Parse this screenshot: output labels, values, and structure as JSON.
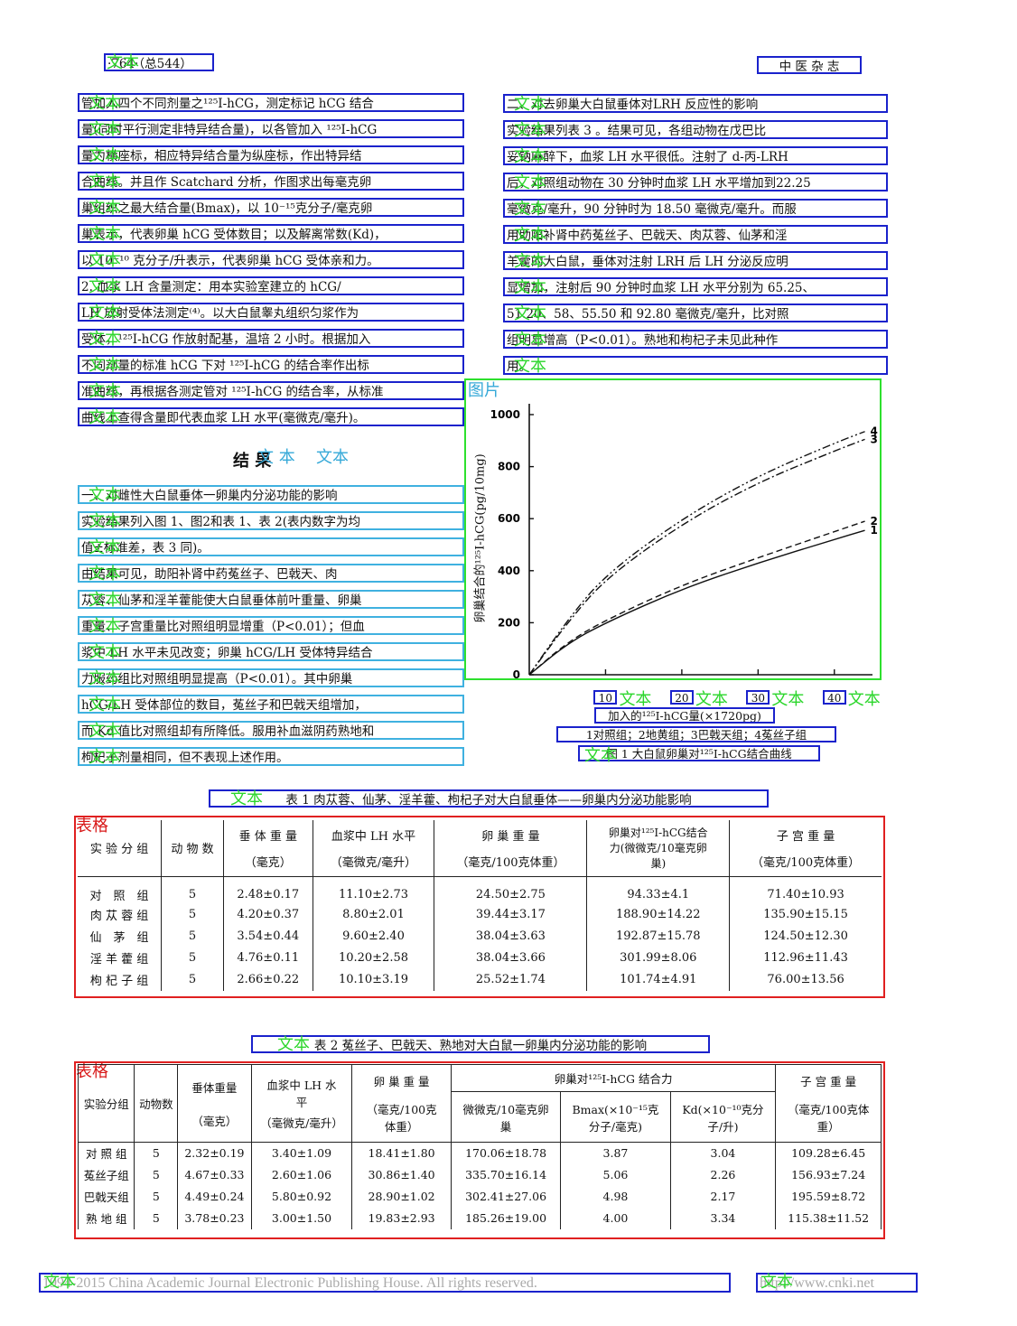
{
  "header": {
    "page_number": "·764·（总544）",
    "journal": "中 医 杂 志"
  },
  "tags": {
    "text": "文本",
    "text_spaced": "文 本",
    "figure": "图片",
    "table": "表格"
  },
  "left_lines": [
    "管加入四个不同剂量之¹²⁵I-hCG，测定标记 hCG 结合",
    "量(同时平行测定非特异结合量)，以各管加入 ¹²⁵I-hCG",
    "量为横座标，相应特异结合量为纵座标，作出特异结",
    "合曲线。并且作 Scatchard 分析，作图求出每毫克卵",
    "巢组织之最大结合量(Bmax)，以 10⁻¹⁵克分子/毫克卵",
    "巢表示，代表卵巢 hCG 受体数目；以及解离常数(Kd)，",
    "以 10⁻¹⁰ 克分子/升表示，代表卵巢 hCG 受体亲和力。",
    "2. 血浆 LH 含量测定：用本实验室建立的 hCG/",
    "LH 放射受体法测定⁽⁴⁾。以大白鼠睾丸组织匀浆作为",
    "受体，¹²⁵I-hCG 作放射配基，温培 2 小时。根据加入",
    "不同剂量的标准 hCG 下对 ¹²⁵I-hCG 的结合率作出标",
    "准曲线，再根据各测定管对 ¹²⁵I-hCG 的结合率，从标准",
    "曲线上查得含量即代表血浆 LH 水平(毫微克/毫升)。"
  ],
  "results_heading": "结 果",
  "results_lines": [
    "一、对雌性大白鼠垂体一卵巢内分泌功能的影响",
    "实验结果列入图 1、图2和表 1、表 2(表内数字为均",
    "值±标准差，表 3 同)。",
    "由结果可见，助阳补肾中药菟丝子、巴戟天、肉",
    "苁蓉、仙茅和淫羊藿能使大白鼠垂体前叶重量、卵巢",
    "重量、子宫重量比对照组明显增重（P<0.01）；但血",
    "浆中 LH 水平未见改变；卵巢 hCG/LH 受体特异结合",
    "力服药组比对照组明显提高（P<0.01）。其中卵巢",
    "hCG/LH 受体部位的数目，菟丝子和巴戟天组增加，",
    "而 Kd 值比对照组却有所降低。服用补血滋阴药熟地和",
    "枸杞子剂量相同，但不表现上述作用。"
  ],
  "right_lines": [
    "二、对去卵巢大白鼠垂体对LRH 反应性的影响",
    "实验结果列表 3 。结果可见，各组动物在戊巴比",
    "妥钠麻醉下，血浆 LH 水平很低。注射了 d-丙-LRH",
    "后，对照组动物在 30 分钟时血浆 LH 水平增加到22.25",
    "毫微克/毫升，90 分钟时为 18.50 毫微克/毫升。而服",
    "用助阳补肾中药菟丝子、巴戟天、肉苁蓉、仙茅和淫",
    "羊藿的大白鼠，垂体对注射 LRH 后 LH 分泌反应明",
    "显增加，注射后 90 分钟时血浆 LH 水平分别为 65.25、",
    "51.20、58、55.50 和 92.80 毫微克/毫升，比对照",
    "组明显增高（P<0.01）。熟地和枸杞子未见此种作",
    "用。"
  ],
  "figure": {
    "y_tick_labels": [
      "1000",
      "800",
      "600",
      "400",
      "200",
      "0"
    ],
    "y_axis_label": "卵巢结合的¹²⁵I-hCG(pg/10mg)",
    "x_tick_labels": [
      "10",
      "20",
      "30",
      "40"
    ],
    "x_axis_label": "加入的¹²⁵I-hCG量(×1720pg)",
    "legend_line": "1对照组；2地黄组；3巴戟天组；4菟丝子组",
    "caption": "图 1 大白鼠卵巢对¹²⁵I-hCG结合曲线",
    "curve_labels": [
      "4",
      "3",
      "2",
      "1"
    ]
  },
  "chart_data": {
    "type": "line",
    "title": "",
    "xlabel": "加入的¹²⁵I-hCG量(×1720pg)",
    "ylabel": "卵巢结合的¹²⁵I-hCG(pg/10mg)",
    "ylim": [
      0,
      1000
    ],
    "xlim": [
      0,
      45
    ],
    "grid": false,
    "x": [
      0,
      5,
      10,
      20,
      30,
      40,
      44
    ],
    "series": [
      {
        "name": "1",
        "values": [
          0,
          120,
          200,
          330,
          430,
          520,
          555
        ]
      },
      {
        "name": "2",
        "values": [
          0,
          125,
          210,
          345,
          450,
          550,
          590
        ]
      },
      {
        "name": "3",
        "values": [
          0,
          200,
          370,
          580,
          740,
          860,
          905
        ]
      },
      {
        "name": "4",
        "values": [
          0,
          210,
          385,
          600,
          765,
          890,
          935
        ]
      }
    ]
  },
  "table1": {
    "title": "表 1 肉苁蓉、仙茅、淫羊藿、枸杞子对大白鼠垂体——卵巢内分泌功能影响",
    "headers": [
      [
        "实 验 分 组",
        ""
      ],
      [
        "动 物 数",
        ""
      ],
      [
        "垂 体 重 量",
        "（毫克）"
      ],
      [
        "血浆中 LH 水平",
        "（毫微克/毫升）"
      ],
      [
        "卵 巢 重 量",
        "（毫克/100克体重）"
      ],
      [
        "卵巢对¹²⁵I-hCG结合力(微微克/10毫克卵巢)",
        ""
      ],
      [
        "子 宫 重 量",
        "（毫克/100克体重）"
      ]
    ],
    "rows": [
      [
        "对　照　组",
        "5",
        "2.48±0.17",
        "11.10±2.73",
        "24.50±2.75",
        "94.33±4.1",
        "71.40±10.93"
      ],
      [
        "肉 苁 蓉 组",
        "5",
        "4.20±0.37",
        "8.80±2.01",
        "39.44±3.17",
        "188.90±14.22",
        "135.90±15.15"
      ],
      [
        "仙　茅　组",
        "5",
        "3.54±0.44",
        "9.60±2.40",
        "38.04±3.63",
        "192.87±15.78",
        "124.50±12.30"
      ],
      [
        "淫 羊 藿 组",
        "5",
        "4.76±0.11",
        "10.20±2.58",
        "38.04±3.66",
        "301.99±8.06",
        "112.96±11.43"
      ],
      [
        "枸 杞 子 组",
        "5",
        "2.66±0.22",
        "10.10±3.19",
        "25.52±1.74",
        "101.74±4.91",
        "76.00±13.56"
      ]
    ]
  },
  "table2": {
    "title": "表 2 菟丝子、巴戟天、熟地对大白鼠一卵巢内分泌功能的影响",
    "head": {
      "group": "实验分组",
      "count": "动物数",
      "pituitary": "垂体重量",
      "pituitary_unit": "（毫克）",
      "lh": "血浆中 LH 水　平",
      "lh_unit": "（毫微克/毫升）",
      "ovary": "卵 巢 重 量",
      "ovary_unit": "（毫克/100克体重）",
      "binding": "卵巢对¹²⁵I-hCG 结合力",
      "binding_a": "微微克/10毫克卵巢",
      "binding_b": "Bmax(×10⁻¹⁵克分子/毫克)",
      "binding_c": "Kd(×10⁻¹⁰克分子/升)",
      "uterus": "子 宫 重 量",
      "uterus_unit": "（毫克/100克体重）"
    },
    "rows": [
      [
        "对 照 组",
        "5",
        "2.32±0.19",
        "3.40±1.09",
        "18.41±1.80",
        "170.06±18.78",
        "3.87",
        "3.04",
        "109.28±6.45"
      ],
      [
        "菟丝子组",
        "5",
        "4.67±0.33",
        "2.60±1.06",
        "30.86±1.40",
        "335.70±16.14",
        "5.06",
        "2.26",
        "156.93±7.24"
      ],
      [
        "巴戟天组",
        "5",
        "4.49±0.24",
        "5.80±0.92",
        "28.90±1.02",
        "302.41±27.06",
        "4.98",
        "2.17",
        "195.59±8.72"
      ],
      [
        "熟 地 组",
        "5",
        "3.78±0.23",
        "3.00±1.50",
        "19.83±2.93",
        "185.26±19.00",
        "4.00",
        "3.34",
        "115.38±11.52"
      ]
    ]
  },
  "footer": {
    "copyright": "1994-2015 China Academic Journal Electronic Publishing House. All rights reserved.",
    "url": "http://www.cnki.net"
  }
}
